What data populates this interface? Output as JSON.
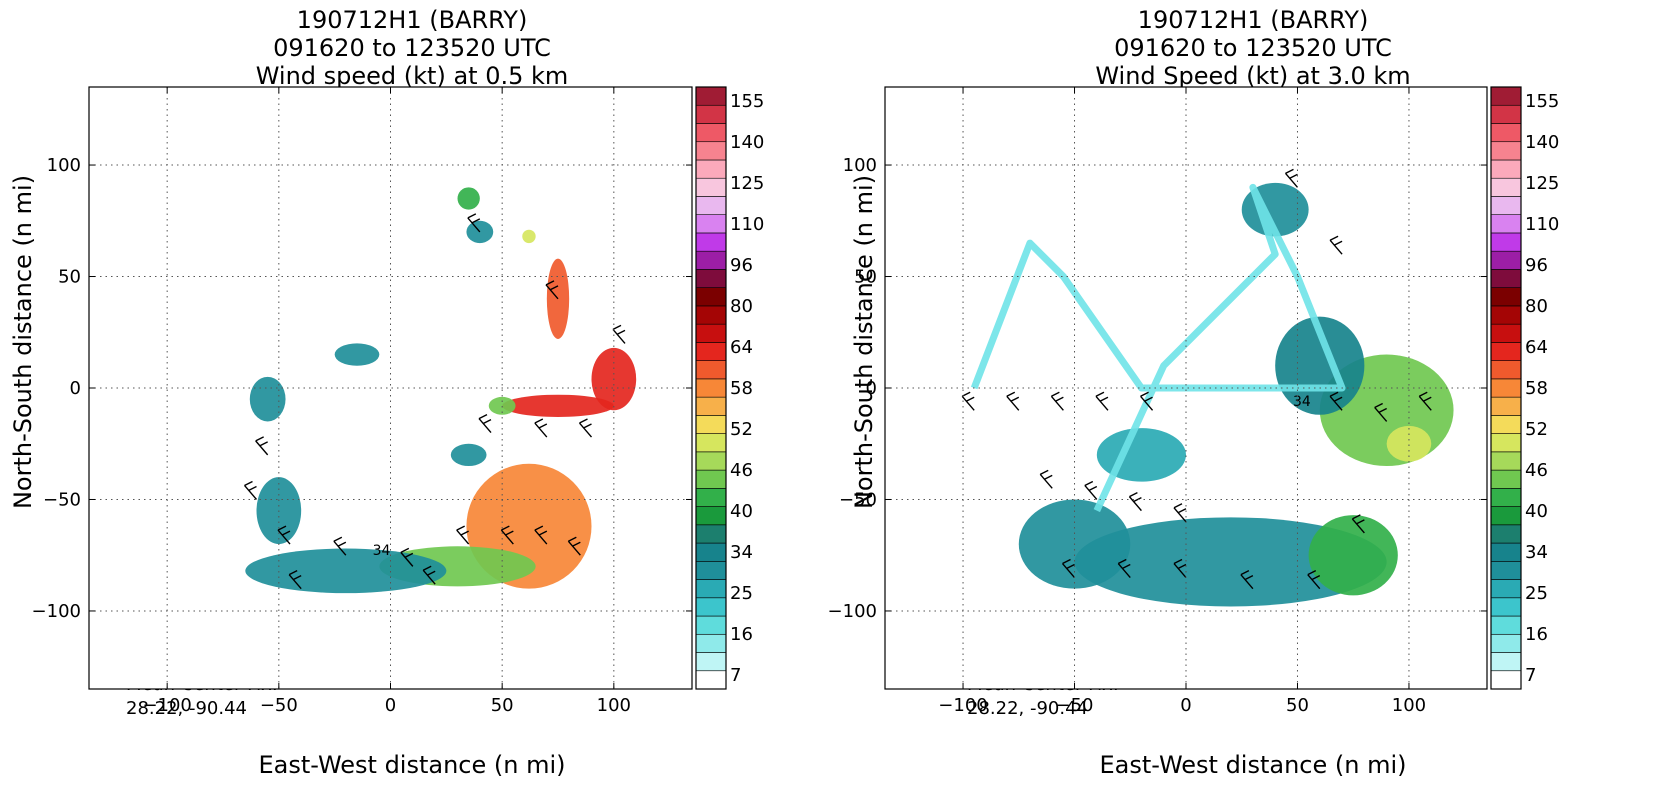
{
  "panels": [
    {
      "title_lines": [
        "190712H1 (BARRY)",
        "091620 to 123520 UTC",
        "Wind speed (kt) at 0.5 km"
      ],
      "fix_label": "Mean Center Fix:",
      "fix_value": "28.22, -90.44"
    },
    {
      "title_lines": [
        "190712H1 (BARRY)",
        "091620 to 123520 UTC",
        "Wind Speed (kt) at 3.0 km"
      ],
      "fix_label": "Mean Center Fix:",
      "fix_value": "28.22, -90.44"
    }
  ],
  "chart_data": [
    {
      "type": "heatmap",
      "title": "190712H1 (BARRY) 091620 to 123520 UTC Wind speed (kt) at 0.5 km",
      "xlabel": "East-West distance (n mi)",
      "ylabel": "North-South distance (n mi)",
      "xlim": [
        -135,
        135
      ],
      "ylim": [
        -135,
        135
      ],
      "xticks": [
        -100,
        -50,
        0,
        50,
        100
      ],
      "yticks": [
        -100,
        -50,
        0,
        50,
        100
      ],
      "grid": true,
      "contour_label": "34",
      "colorbar_ticks": [
        155,
        140,
        125,
        110,
        96,
        80,
        64,
        58,
        52,
        46,
        40,
        34,
        25,
        16,
        7
      ],
      "wind_regions": [
        {
          "x": 62,
          "y": -62,
          "rx": 28,
          "ry": 28,
          "kt": 55
        },
        {
          "x": 30,
          "y": -80,
          "rx": 35,
          "ry": 9,
          "kt": 42
        },
        {
          "x": -20,
          "y": -82,
          "rx": 45,
          "ry": 10,
          "kt": 26
        },
        {
          "x": 75,
          "y": -8,
          "rx": 25,
          "ry": 5,
          "kt": 62
        },
        {
          "x": 100,
          "y": 4,
          "rx": 10,
          "ry": 14,
          "kt": 62
        },
        {
          "x": 75,
          "y": 40,
          "rx": 5,
          "ry": 18,
          "kt": 58
        },
        {
          "x": -50,
          "y": -55,
          "rx": 10,
          "ry": 15,
          "kt": 25
        },
        {
          "x": -55,
          "y": -5,
          "rx": 8,
          "ry": 10,
          "kt": 25
        },
        {
          "x": -15,
          "y": 15,
          "rx": 10,
          "ry": 5,
          "kt": 25
        },
        {
          "x": 35,
          "y": 85,
          "rx": 5,
          "ry": 5,
          "kt": 38
        },
        {
          "x": 40,
          "y": 70,
          "rx": 6,
          "ry": 5,
          "kt": 25
        },
        {
          "x": 35,
          "y": -30,
          "rx": 8,
          "ry": 5,
          "kt": 25
        },
        {
          "x": 50,
          "y": -8,
          "rx": 6,
          "ry": 4,
          "kt": 42
        },
        {
          "x": 62,
          "y": 68,
          "rx": 3,
          "ry": 3,
          "kt": 46
        }
      ]
    },
    {
      "type": "heatmap",
      "title": "190712H1 (BARRY) 091620 to 123520 UTC Wind Speed (kt) at 3.0 km",
      "xlabel": "East-West distance (n mi)",
      "ylabel": "North-South distance (n mi)",
      "xlim": [
        -135,
        135
      ],
      "ylim": [
        -135,
        135
      ],
      "xticks": [
        -100,
        -50,
        0,
        50,
        100
      ],
      "yticks": [
        -100,
        -50,
        0,
        50,
        100
      ],
      "grid": true,
      "contour_label": "34",
      "colorbar_ticks": [
        155,
        140,
        125,
        110,
        96,
        80,
        64,
        58,
        52,
        46,
        40,
        34,
        25,
        16,
        7
      ],
      "wind_regions": [
        {
          "x": 20,
          "y": -78,
          "rx": 70,
          "ry": 20,
          "kt": 27
        },
        {
          "x": 75,
          "y": -75,
          "rx": 20,
          "ry": 18,
          "kt": 38
        },
        {
          "x": 90,
          "y": -10,
          "rx": 30,
          "ry": 25,
          "kt": 40
        },
        {
          "x": 60,
          "y": 10,
          "rx": 20,
          "ry": 22,
          "kt": 30
        },
        {
          "x": 40,
          "y": 80,
          "rx": 15,
          "ry": 12,
          "kt": 25
        },
        {
          "x": -50,
          "y": -70,
          "rx": 25,
          "ry": 20,
          "kt": 25
        },
        {
          "x": -20,
          "y": -30,
          "rx": 20,
          "ry": 12,
          "kt": 24
        },
        {
          "x": 100,
          "y": -25,
          "rx": 10,
          "ry": 8,
          "kt": 46
        }
      ]
    }
  ]
}
